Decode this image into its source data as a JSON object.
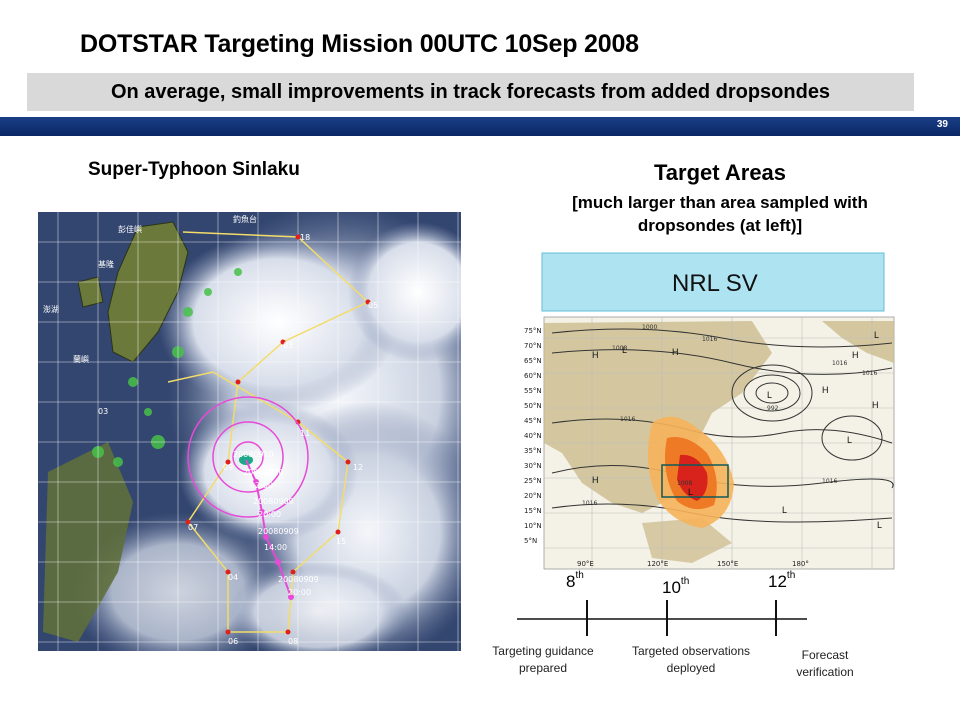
{
  "slide": {
    "title": "DOTSTAR Targeting Mission  00UTC 10Sep 2008",
    "subtitle": "On average, small improvements in track forecasts from added dropsondes",
    "page_number": "39"
  },
  "left_panel": {
    "heading": "Super-Typhoon Sinlaku",
    "image_icon": "satellite-image-icon",
    "map_labels": [
      "彭佳嶼",
      "釣魚台",
      "基隆",
      "澎湖",
      "蘭嶼",
      "20080910",
      "20080910",
      "02:00",
      "20080909",
      "20:00",
      "20080909",
      "14:00",
      "20080909",
      "20:00",
      "18",
      "11",
      "03",
      "06",
      "08",
      "07",
      "15",
      "12",
      "04",
      "09",
      "03",
      "05"
    ]
  },
  "right_panel": {
    "heading": "Target Areas",
    "subheading": "[much larger than area sampled with dropsondes (at left)]",
    "map_title": "NRL SV",
    "lat_labels": [
      "75°N",
      "70°N",
      "65°N",
      "60°N",
      "55°N",
      "50°N",
      "45°N",
      "40°N",
      "35°N",
      "30°N",
      "25°N",
      "20°N",
      "15°N",
      "10°N",
      "5°N"
    ],
    "lon_labels": [
      "90°E",
      "120°E",
      "150°E",
      "180°"
    ],
    "isobar_labels": [
      "1000",
      "1008",
      "1016",
      "1016",
      "1016",
      "992",
      "1008",
      "1016",
      "1016",
      "1016"
    ],
    "pressure_labels": [
      "H",
      "L",
      "H",
      "H",
      "L",
      "H",
      "L",
      "H",
      "L",
      "L",
      "H",
      "L",
      "L"
    ]
  },
  "timeline": {
    "ticks": [
      {
        "num": "8",
        "suffix": "th",
        "caption": "Targeting guidance prepared"
      },
      {
        "num": "10",
        "suffix": "th",
        "caption": "Targeted observations deployed"
      },
      {
        "num": "12",
        "suffix": "th",
        "caption": "Forecast verification"
      }
    ]
  },
  "colors": {
    "header_bar": "#0a2766",
    "subtitle_bg": "#d9d9d9",
    "sv_title_bg": "#aee3f2",
    "target_red": "#d8231c",
    "target_orange": "#f08a1e",
    "track_magenta": "#e84ad8"
  }
}
